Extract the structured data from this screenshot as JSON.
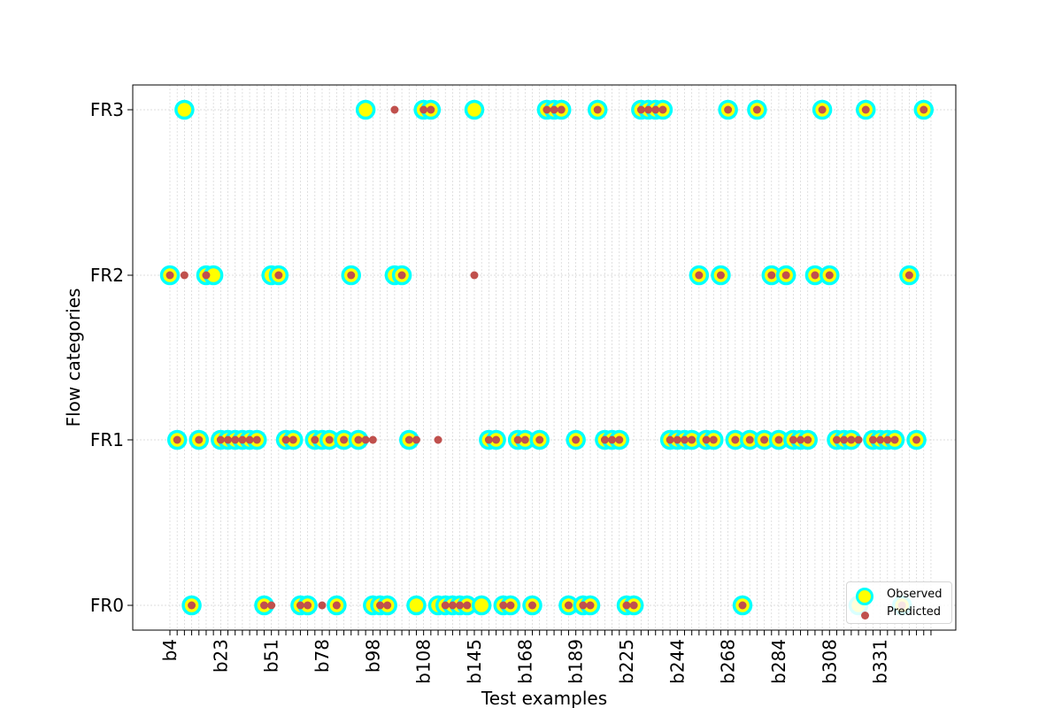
{
  "chart_data": {
    "type": "scatter",
    "xlabel": "Test examples",
    "ylabel": "Flow categories",
    "y_categories": [
      "FR0",
      "FR1",
      "FR2",
      "FR3"
    ],
    "x_tick_labels": [
      "b4",
      "b23",
      "b51",
      "b78",
      "b98",
      "b108",
      "b145",
      "b168",
      "b189",
      "b225",
      "b244",
      "b268",
      "b284",
      "b308",
      "b331"
    ],
    "x_range": [
      0,
      106
    ],
    "grid": true,
    "legend_position": "lower right",
    "series": [
      {
        "name": "Observed",
        "marker": "large yellow circle with cyan edge",
        "points": [
          [
            0,
            2
          ],
          [
            1,
            1
          ],
          [
            2,
            3
          ],
          [
            3,
            0
          ],
          [
            4,
            1
          ],
          [
            5,
            2
          ],
          [
            6,
            2
          ],
          [
            7,
            1
          ],
          [
            8,
            1
          ],
          [
            9,
            1
          ],
          [
            10,
            1
          ],
          [
            11,
            1
          ],
          [
            12,
            1
          ],
          [
            13,
            0
          ],
          [
            14,
            2
          ],
          [
            15,
            2
          ],
          [
            16,
            1
          ],
          [
            17,
            1
          ],
          [
            18,
            0
          ],
          [
            19,
            0
          ],
          [
            20,
            1
          ],
          [
            21,
            1
          ],
          [
            22,
            1
          ],
          [
            23,
            0
          ],
          [
            24,
            1
          ],
          [
            25,
            2
          ],
          [
            26,
            1
          ],
          [
            27,
            3
          ],
          [
            28,
            0
          ],
          [
            29,
            0
          ],
          [
            30,
            0
          ],
          [
            31,
            2
          ],
          [
            32,
            2
          ],
          [
            33,
            1
          ],
          [
            34,
            0
          ],
          [
            35,
            3
          ],
          [
            36,
            3
          ],
          [
            37,
            0
          ],
          [
            38,
            0
          ],
          [
            39,
            0
          ],
          [
            40,
            0
          ],
          [
            41,
            0
          ],
          [
            42,
            3
          ],
          [
            43,
            0
          ],
          [
            44,
            1
          ],
          [
            45,
            1
          ],
          [
            46,
            0
          ],
          [
            47,
            0
          ],
          [
            48,
            1
          ],
          [
            49,
            1
          ],
          [
            50,
            0
          ],
          [
            51,
            1
          ],
          [
            52,
            3
          ],
          [
            53,
            3
          ],
          [
            54,
            3
          ],
          [
            55,
            0
          ],
          [
            56,
            1
          ],
          [
            57,
            0
          ],
          [
            58,
            0
          ],
          [
            59,
            3
          ],
          [
            60,
            1
          ],
          [
            61,
            1
          ],
          [
            62,
            1
          ],
          [
            63,
            0
          ],
          [
            64,
            0
          ],
          [
            65,
            3
          ],
          [
            66,
            3
          ],
          [
            67,
            3
          ],
          [
            68,
            3
          ],
          [
            69,
            1
          ],
          [
            70,
            1
          ],
          [
            71,
            1
          ],
          [
            72,
            1
          ],
          [
            73,
            2
          ],
          [
            74,
            1
          ],
          [
            75,
            1
          ],
          [
            76,
            2
          ],
          [
            77,
            3
          ],
          [
            78,
            1
          ],
          [
            79,
            0
          ],
          [
            80,
            1
          ],
          [
            81,
            3
          ],
          [
            82,
            1
          ],
          [
            83,
            2
          ],
          [
            84,
            1
          ],
          [
            85,
            2
          ],
          [
            86,
            1
          ],
          [
            87,
            1
          ],
          [
            88,
            1
          ],
          [
            89,
            2
          ],
          [
            90,
            3
          ],
          [
            91,
            2
          ],
          [
            92,
            1
          ],
          [
            93,
            1
          ],
          [
            94,
            1
          ],
          [
            95,
            0
          ],
          [
            96,
            3
          ],
          [
            97,
            1
          ],
          [
            98,
            1
          ],
          [
            99,
            1
          ],
          [
            100,
            1
          ],
          [
            101,
            0
          ],
          [
            102,
            2
          ],
          [
            103,
            1
          ],
          [
            104,
            3
          ]
        ]
      },
      {
        "name": "Predicted",
        "marker": "small dark red dot",
        "points": [
          [
            0,
            2
          ],
          [
            1,
            1
          ],
          [
            2,
            2
          ],
          [
            3,
            0
          ],
          [
            4,
            1
          ],
          [
            5,
            2
          ],
          [
            7,
            1
          ],
          [
            8,
            1
          ],
          [
            9,
            1
          ],
          [
            10,
            1
          ],
          [
            11,
            1
          ],
          [
            12,
            1
          ],
          [
            13,
            0
          ],
          [
            14,
            0
          ],
          [
            15,
            2
          ],
          [
            16,
            1
          ],
          [
            17,
            1
          ],
          [
            18,
            0
          ],
          [
            19,
            0
          ],
          [
            20,
            1
          ],
          [
            21,
            0
          ],
          [
            22,
            1
          ],
          [
            23,
            0
          ],
          [
            24,
            1
          ],
          [
            25,
            2
          ],
          [
            26,
            1
          ],
          [
            27,
            1
          ],
          [
            28,
            1
          ],
          [
            29,
            0
          ],
          [
            30,
            0
          ],
          [
            31,
            3
          ],
          [
            32,
            2
          ],
          [
            33,
            1
          ],
          [
            34,
            1
          ],
          [
            35,
            3
          ],
          [
            36,
            3
          ],
          [
            37,
            1
          ],
          [
            38,
            0
          ],
          [
            39,
            0
          ],
          [
            40,
            0
          ],
          [
            41,
            0
          ],
          [
            42,
            2
          ],
          [
            44,
            1
          ],
          [
            45,
            1
          ],
          [
            46,
            0
          ],
          [
            47,
            0
          ],
          [
            48,
            1
          ],
          [
            49,
            1
          ],
          [
            50,
            0
          ],
          [
            51,
            1
          ],
          [
            52,
            3
          ],
          [
            53,
            3
          ],
          [
            54,
            3
          ],
          [
            55,
            0
          ],
          [
            56,
            1
          ],
          [
            57,
            0
          ],
          [
            58,
            0
          ],
          [
            59,
            3
          ],
          [
            60,
            1
          ],
          [
            61,
            1
          ],
          [
            62,
            1
          ],
          [
            63,
            0
          ],
          [
            64,
            0
          ],
          [
            65,
            3
          ],
          [
            66,
            3
          ],
          [
            67,
            3
          ],
          [
            68,
            3
          ],
          [
            69,
            1
          ],
          [
            70,
            1
          ],
          [
            71,
            1
          ],
          [
            72,
            1
          ],
          [
            73,
            2
          ],
          [
            74,
            1
          ],
          [
            75,
            1
          ],
          [
            76,
            2
          ],
          [
            77,
            3
          ],
          [
            78,
            1
          ],
          [
            79,
            0
          ],
          [
            80,
            1
          ],
          [
            81,
            3
          ],
          [
            82,
            1
          ],
          [
            83,
            2
          ],
          [
            84,
            1
          ],
          [
            85,
            2
          ],
          [
            86,
            1
          ],
          [
            87,
            1
          ],
          [
            88,
            1
          ],
          [
            89,
            2
          ],
          [
            90,
            3
          ],
          [
            91,
            2
          ],
          [
            92,
            1
          ],
          [
            93,
            1
          ],
          [
            94,
            1
          ],
          [
            95,
            1
          ],
          [
            96,
            3
          ],
          [
            97,
            1
          ],
          [
            98,
            1
          ],
          [
            99,
            1
          ],
          [
            100,
            1
          ],
          [
            101,
            0
          ],
          [
            102,
            2
          ],
          [
            103,
            1
          ],
          [
            104,
            3
          ]
        ]
      }
    ]
  },
  "legend": {
    "observed_label": "Observed",
    "predicted_label": "Predicted"
  },
  "colors": {
    "observed_fill": "#ffff00",
    "observed_edge": "#00ffff",
    "predicted": "#c0504d",
    "grid": "#d3d3d3"
  }
}
